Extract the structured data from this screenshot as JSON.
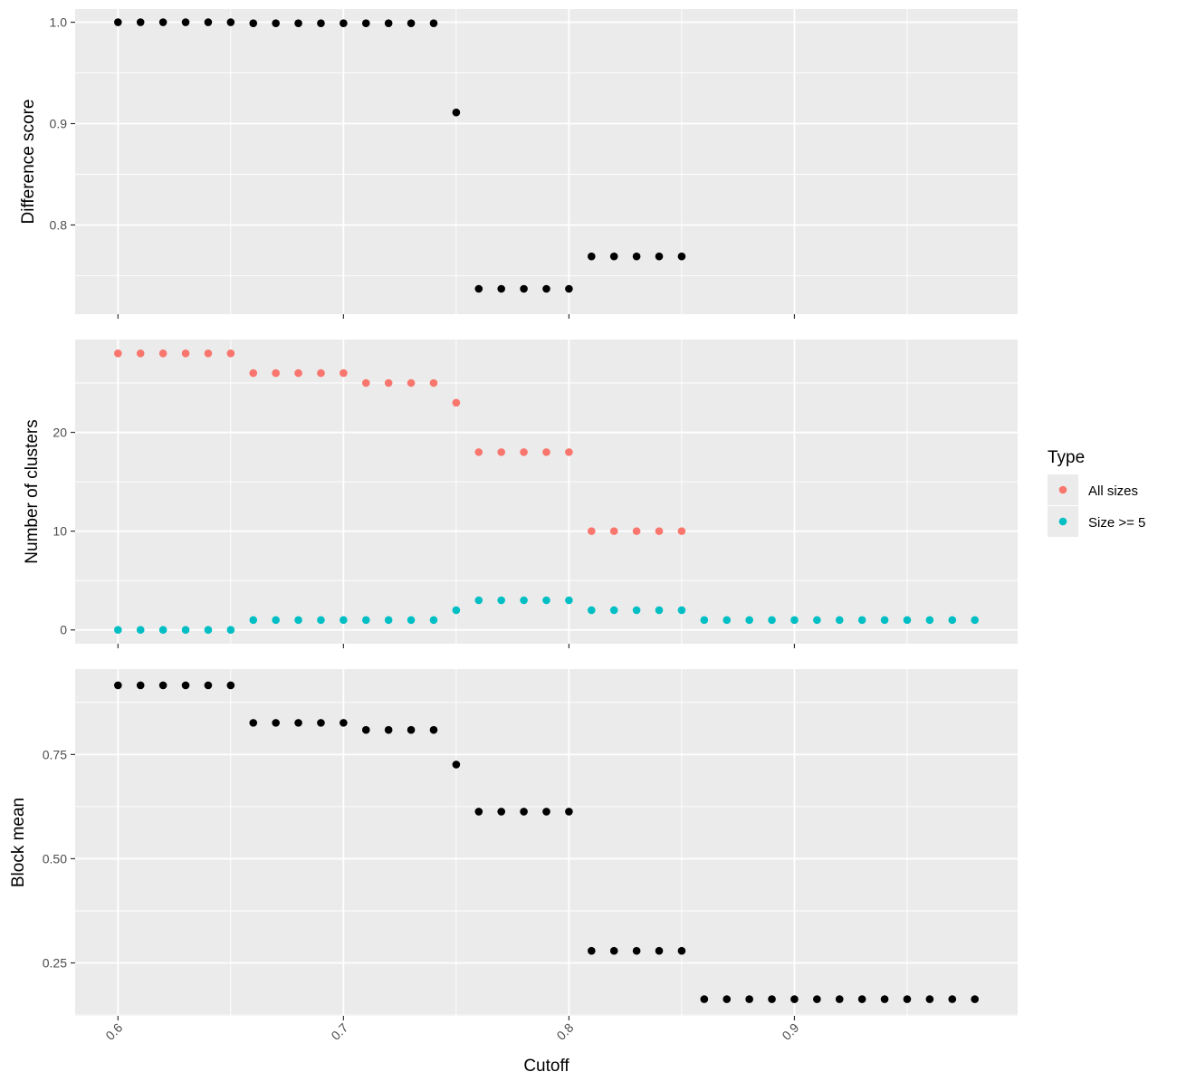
{
  "chart_data": {
    "type": "scatter",
    "xlabel": "Cutoff",
    "x_ticks": [
      0.6,
      0.7,
      0.8,
      0.9
    ],
    "x_tick_labels": [
      "0.6",
      "0.7",
      "0.8",
      "0.9"
    ],
    "xlim": [
      0.581,
      0.999
    ],
    "grid": true,
    "legend": {
      "title": "Type",
      "placement": "right",
      "entries": [
        {
          "label": "All sizes",
          "color": "#F8766D"
        },
        {
          "label": "Size >= 5",
          "color": "#00BFC4"
        }
      ]
    },
    "panels": [
      {
        "ylabel": "Difference score",
        "ylim": [
          0.712,
          1.013
        ],
        "y_ticks": [
          0.8,
          0.9,
          1.0
        ],
        "y_tick_labels": [
          "0.8",
          "0.9",
          "1.0"
        ],
        "series": [
          {
            "color": "#000000",
            "x": [
              0.6,
              0.61,
              0.62,
              0.63,
              0.64,
              0.65,
              0.66,
              0.67,
              0.68,
              0.69,
              0.7,
              0.71,
              0.72,
              0.73,
              0.74,
              0.75,
              0.76,
              0.77,
              0.78,
              0.79,
              0.8,
              0.81,
              0.82,
              0.83,
              0.84,
              0.85
            ],
            "y": [
              1.0,
              1.0,
              1.0,
              1.0,
              1.0,
              1.0,
              0.999,
              0.999,
              0.999,
              0.999,
              0.999,
              0.999,
              0.999,
              0.999,
              0.999,
              0.911,
              0.737,
              0.737,
              0.737,
              0.737,
              0.737,
              0.769,
              0.769,
              0.769,
              0.769,
              0.769
            ]
          }
        ]
      },
      {
        "ylabel": "Number of clusters",
        "ylim": [
          -1.4,
          29.4
        ],
        "y_ticks": [
          0,
          10,
          20
        ],
        "y_tick_labels": [
          "0",
          "10",
          "20"
        ],
        "series": [
          {
            "name": "All sizes",
            "color": "#F8766D",
            "x": [
              0.6,
              0.61,
              0.62,
              0.63,
              0.64,
              0.65,
              0.66,
              0.67,
              0.68,
              0.69,
              0.7,
              0.71,
              0.72,
              0.73,
              0.74,
              0.75,
              0.76,
              0.77,
              0.78,
              0.79,
              0.8,
              0.81,
              0.82,
              0.83,
              0.84,
              0.85
            ],
            "y": [
              28,
              28,
              28,
              28,
              28,
              28,
              26,
              26,
              26,
              26,
              26,
              25,
              25,
              25,
              25,
              23,
              18,
              18,
              18,
              18,
              18,
              10,
              10,
              10,
              10,
              10
            ]
          },
          {
            "name": "Size >= 5",
            "color": "#00BFC4",
            "x": [
              0.6,
              0.61,
              0.62,
              0.63,
              0.64,
              0.65,
              0.66,
              0.67,
              0.68,
              0.69,
              0.7,
              0.71,
              0.72,
              0.73,
              0.74,
              0.75,
              0.76,
              0.77,
              0.78,
              0.79,
              0.8,
              0.81,
              0.82,
              0.83,
              0.84,
              0.85,
              0.86,
              0.87,
              0.88,
              0.89,
              0.9,
              0.91,
              0.92,
              0.93,
              0.94,
              0.95,
              0.96,
              0.97,
              0.98
            ],
            "y": [
              0,
              0,
              0,
              0,
              0,
              0,
              1,
              1,
              1,
              1,
              1,
              1,
              1,
              1,
              1,
              2,
              3,
              3,
              3,
              3,
              3,
              2,
              2,
              2,
              2,
              2,
              1,
              1,
              1,
              1,
              1,
              1,
              1,
              1,
              1,
              1,
              1,
              1,
              1
            ]
          }
        ]
      },
      {
        "ylabel": "Block mean",
        "ylim": [
          0.123,
          0.955
        ],
        "y_ticks": [
          0.25,
          0.5,
          0.75
        ],
        "y_tick_labels": [
          "0.25",
          "0.50",
          "0.75"
        ],
        "series": [
          {
            "color": "#000000",
            "x": [
              0.6,
              0.61,
              0.62,
              0.63,
              0.64,
              0.65,
              0.66,
              0.67,
              0.68,
              0.69,
              0.7,
              0.71,
              0.72,
              0.73,
              0.74,
              0.75,
              0.76,
              0.77,
              0.78,
              0.79,
              0.8,
              0.81,
              0.82,
              0.83,
              0.84,
              0.85,
              0.86,
              0.87,
              0.88,
              0.89,
              0.9,
              0.91,
              0.92,
              0.93,
              0.94,
              0.95,
              0.96,
              0.97,
              0.98
            ],
            "y": [
              0.916,
              0.916,
              0.916,
              0.916,
              0.916,
              0.916,
              0.826,
              0.826,
              0.826,
              0.826,
              0.826,
              0.809,
              0.809,
              0.809,
              0.809,
              0.726,
              0.613,
              0.613,
              0.613,
              0.613,
              0.613,
              0.279,
              0.279,
              0.279,
              0.279,
              0.279,
              0.163,
              0.163,
              0.163,
              0.163,
              0.163,
              0.163,
              0.163,
              0.163,
              0.163,
              0.163,
              0.163,
              0.163,
              0.163
            ]
          }
        ]
      }
    ]
  }
}
